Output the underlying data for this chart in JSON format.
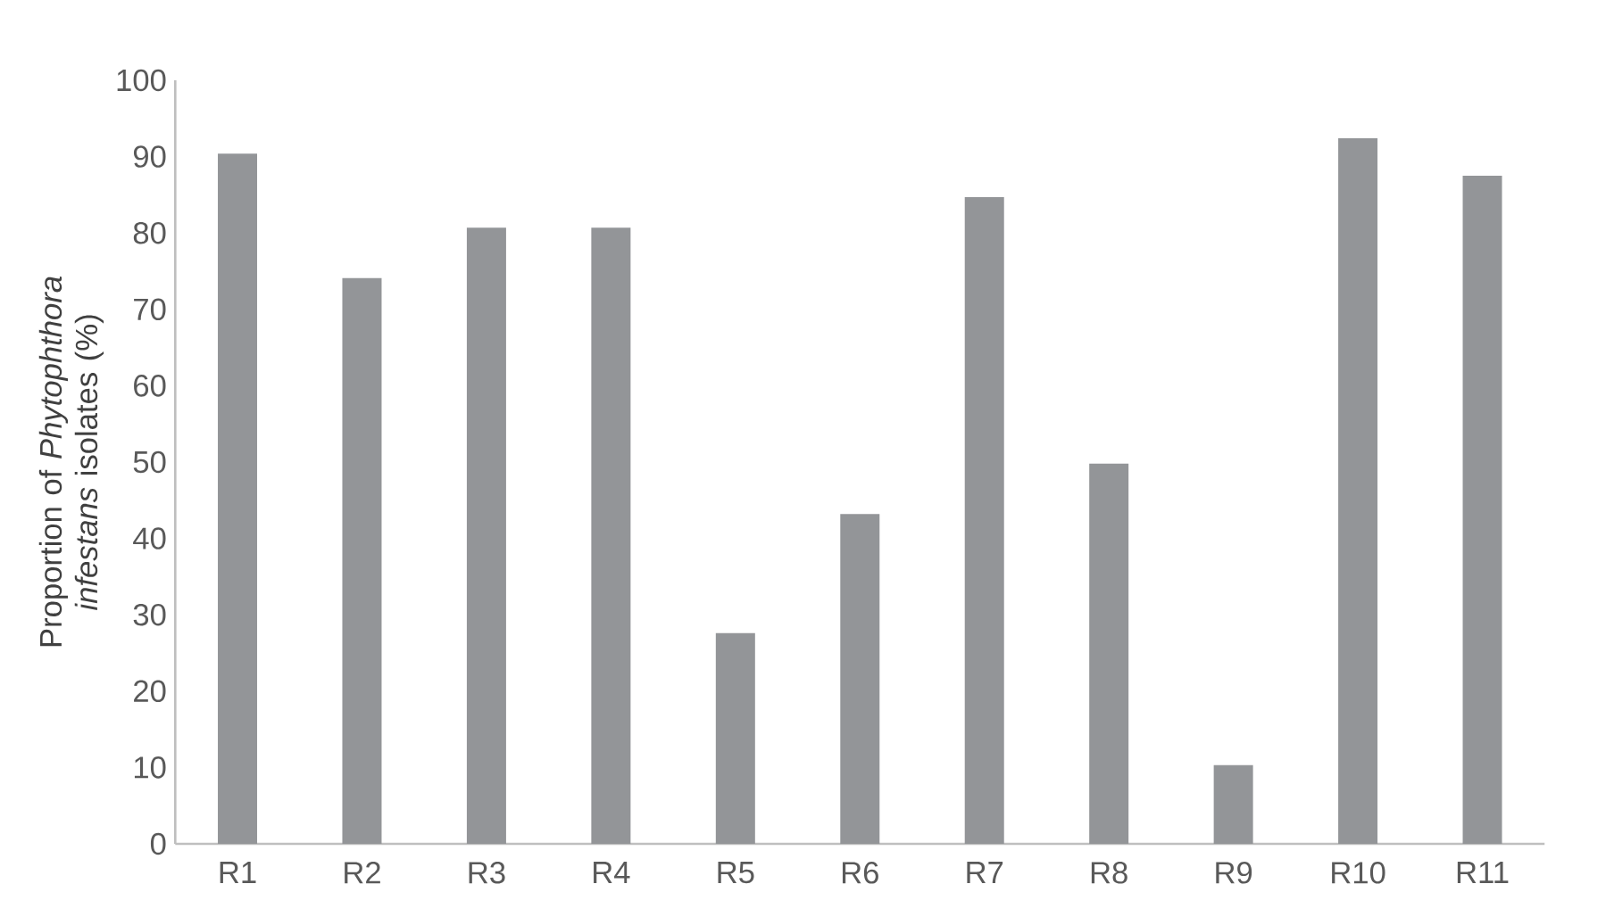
{
  "chart_data": {
    "type": "bar",
    "ylabel": "Proportion of *Phytophthora infestans* isolates (%)",
    "categories": [
      "R1",
      "R2",
      "R3",
      "R4",
      "R5",
      "R6",
      "R7",
      "R8",
      "R9",
      "R10",
      "R11"
    ],
    "values": [
      90.4,
      74.1,
      80.7,
      80.7,
      27.6,
      43.2,
      84.7,
      49.8,
      10.3,
      92.4,
      87.5
    ],
    "color": "#939598",
    "ylim": [
      0,
      100
    ],
    "yticks": [
      0,
      10,
      20,
      30,
      40,
      50,
      60,
      70,
      80,
      90,
      100
    ],
    "grid": false
  }
}
